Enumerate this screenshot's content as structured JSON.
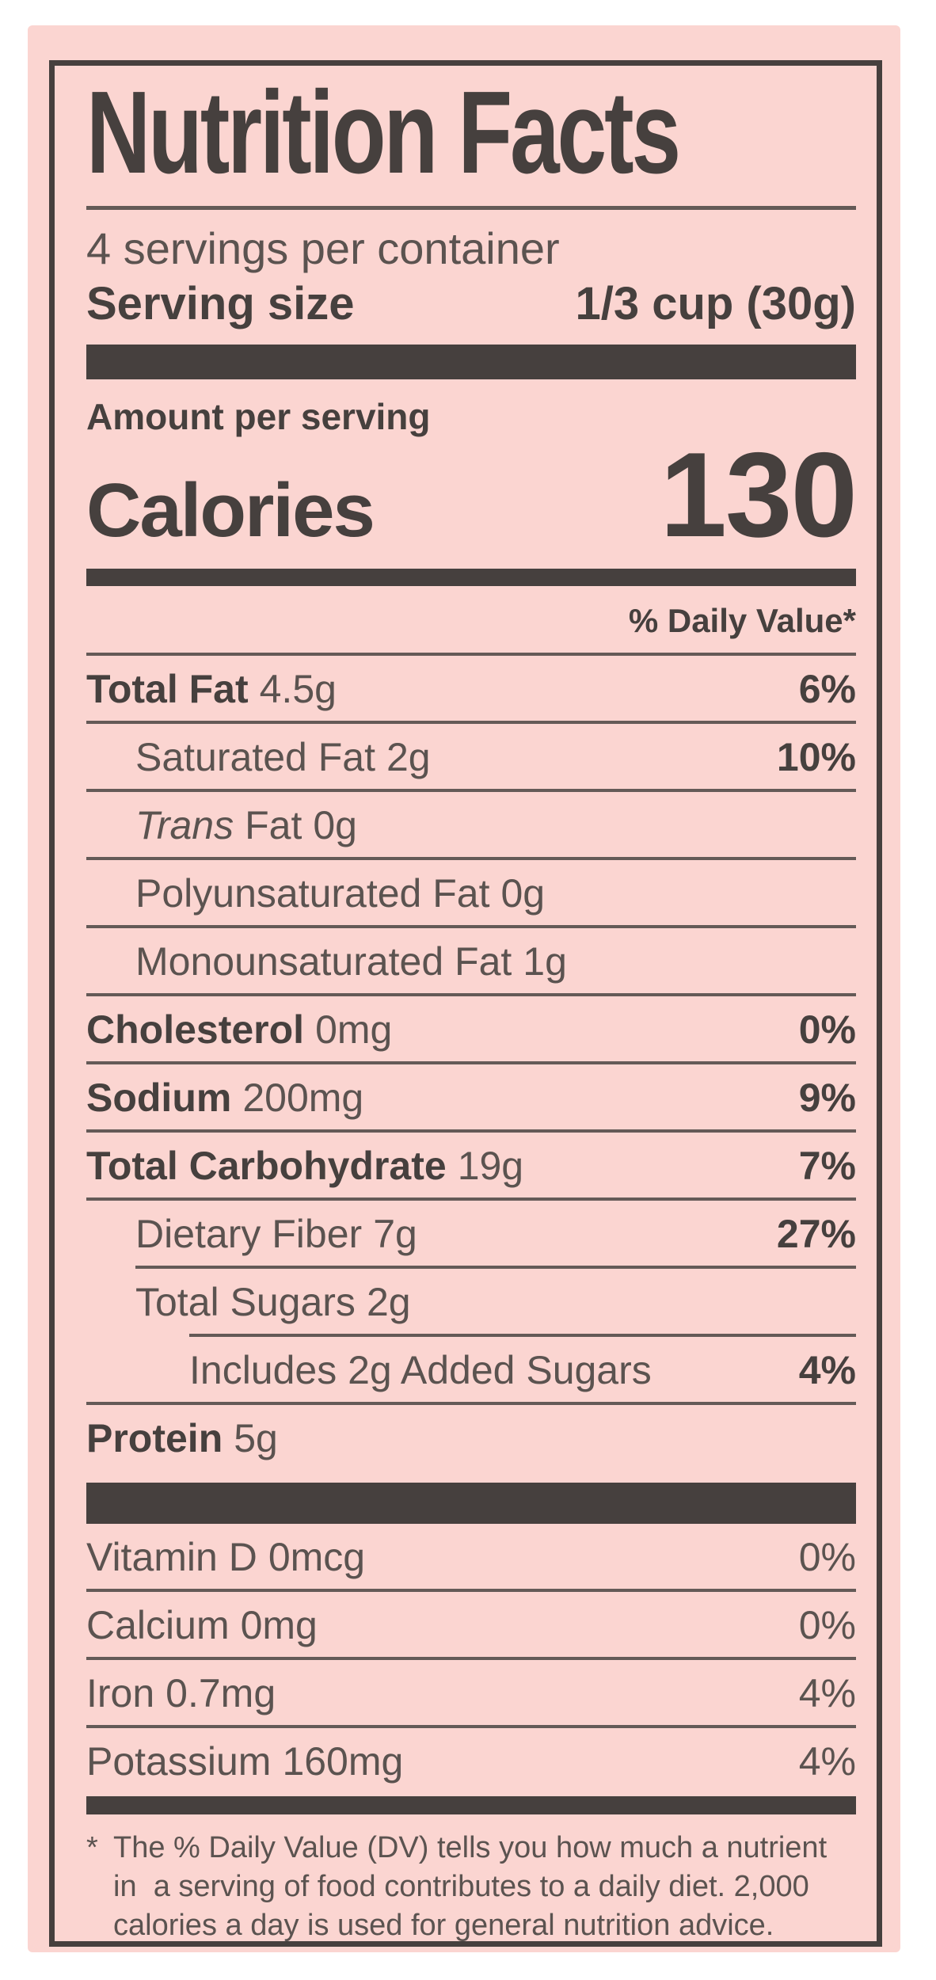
{
  "label": {
    "colors": {
      "paper": "#fbd5d1",
      "ink": "#46403e",
      "ink_soft": "#5b5350",
      "rule": "#645a57"
    },
    "title": "Nutrition Facts",
    "servings_per_container": "4 servings per container",
    "serving_size": {
      "label": "Serving size",
      "value": "1/3 cup (30g)"
    },
    "amount_per_serving": "Amount per serving",
    "calories": {
      "label": "Calories",
      "value": "130"
    },
    "daily_value_header": "% Daily Value*",
    "nutrients": [
      {
        "name": "Total Fat",
        "amount": "4.5g",
        "dv": "6%"
      },
      {
        "name": "Saturated Fat",
        "amount": "2g",
        "dv": "10%"
      },
      {
        "name_italic": "Trans",
        "name": "Fat",
        "amount": "0g",
        "dv": ""
      },
      {
        "name": "Polyunsaturated Fat",
        "amount": "0g",
        "dv": ""
      },
      {
        "name": "Monounsaturated Fat",
        "amount": "1g",
        "dv": ""
      },
      {
        "name": "Cholesterol",
        "amount": "0mg",
        "dv": "0%"
      },
      {
        "name": "Sodium",
        "amount": "200mg",
        "dv": "9%"
      },
      {
        "name": "Total Carbohydrate",
        "amount": "19g",
        "dv": "7%"
      },
      {
        "name": "Dietary Fiber",
        "amount": "7g",
        "dv": "27%"
      },
      {
        "name": "Total Sugars",
        "amount": "2g",
        "dv": ""
      },
      {
        "name": "Includes 2g Added Sugars",
        "amount": "",
        "dv": "4%"
      },
      {
        "name": "Protein",
        "amount": "5g",
        "dv": ""
      }
    ],
    "micronutrients": [
      {
        "name": "Vitamin D",
        "amount": "0mcg",
        "dv": "0%"
      },
      {
        "name": "Calcium",
        "amount": "0mg",
        "dv": "0%"
      },
      {
        "name": "Iron",
        "amount": "0.7mg",
        "dv": "4%"
      },
      {
        "name": "Potassium",
        "amount": "160mg",
        "dv": "4%"
      }
    ],
    "footnote": {
      "marker": "*",
      "lines": [
        "The % Daily Value (DV) tells you how much a nutrient",
        "in  a serving of food contributes to a daily diet. 2,000",
        "calories a day is used for general nutrition advice."
      ]
    }
  }
}
